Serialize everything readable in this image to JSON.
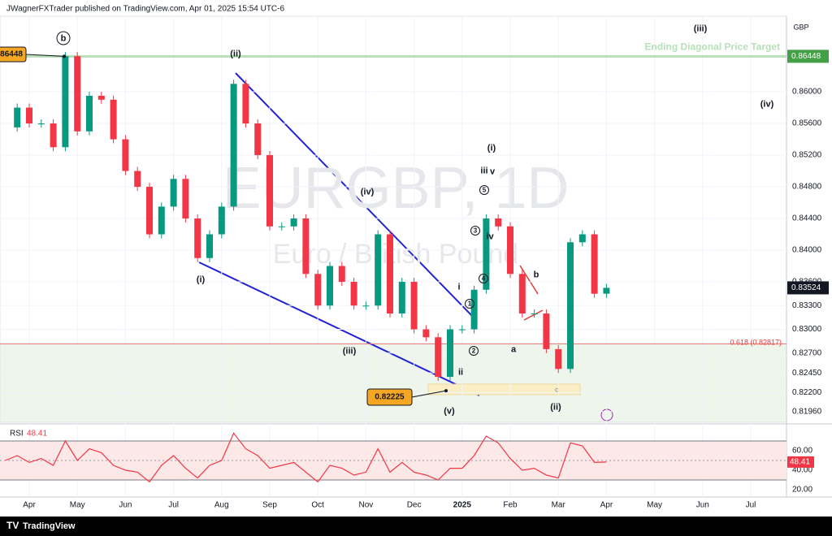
{
  "header": {
    "publisher": "JWagnerFXTrader published on TradingView.com, Apr 01, 2025 15:54 UTC-6"
  },
  "footer": {
    "brand": "TradingView"
  },
  "chart_data": [
    {
      "type": "candlestick",
      "watermark_symbol": "EURGBP, 1D",
      "watermark_name": "Euro / British Pound",
      "currency": "GBP",
      "categories": [
        null,
        null,
        "Apr",
        null,
        null,
        null,
        "May",
        null,
        null,
        null,
        "Jun",
        null,
        null,
        null,
        "Jul",
        null,
        null,
        null,
        "Aug",
        null,
        null,
        null,
        "Sep",
        null,
        null,
        null,
        "Oct",
        null,
        null,
        null,
        "Nov",
        null,
        null,
        null,
        "Dec",
        null,
        null,
        null,
        "2025",
        null,
        null,
        null,
        "Feb",
        null,
        null,
        null,
        "Mar",
        null,
        null,
        null,
        "Apr",
        null,
        null,
        null,
        "May",
        null,
        null,
        null,
        "Jun",
        null,
        null,
        null,
        "Jul"
      ],
      "values": [
        0.8555,
        0.858,
        0.856,
        0.856,
        0.853,
        0.8645,
        0.855,
        0.8595,
        0.859,
        0.854,
        0.85,
        0.848,
        0.842,
        0.8455,
        0.849,
        0.844,
        0.839,
        0.842,
        0.8455,
        0.861,
        0.856,
        0.852,
        0.843,
        0.843,
        0.844,
        0.837,
        0.833,
        0.838,
        0.836,
        0.833,
        0.833,
        0.842,
        0.832,
        0.836,
        0.83,
        0.829,
        0.824,
        0.83,
        0.83,
        0.835,
        0.844,
        0.843,
        0.837,
        0.832,
        0.832,
        0.8275,
        0.825,
        0.841,
        0.842,
        0.8345,
        0.83524,
        null,
        null,
        null,
        null,
        null,
        null,
        null,
        null,
        null,
        null,
        null,
        null
      ],
      "up_color": "#089981",
      "down_color": "#f23645",
      "ylim": [
        0.81826,
        0.86954
      ],
      "yticks": [
        {
          "value": 0.86,
          "label": "0.86000"
        },
        {
          "value": 0.856,
          "label": "0.85600"
        },
        {
          "value": 0.852,
          "label": "0.85200"
        },
        {
          "value": 0.848,
          "label": "0.84800"
        },
        {
          "value": 0.844,
          "label": "0.84400"
        },
        {
          "value": 0.84,
          "label": "0.84000"
        },
        {
          "value": 0.836,
          "label": "0.83600"
        },
        {
          "value": 0.833,
          "label": "0.83300"
        },
        {
          "value": 0.83,
          "label": "0.83000"
        },
        {
          "value": 0.827,
          "label": "0.82700"
        },
        {
          "value": 0.8245,
          "label": "0.82450"
        },
        {
          "value": 0.822,
          "label": "0.82200"
        },
        {
          "value": 0.8196,
          "label": "0.81960"
        }
      ],
      "target_label": "Ending Diagonal Price Target",
      "target_level": 0.86448,
      "fib_label": "0.618 (0.82817)",
      "fib_level": 0.82817,
      "low_level": 0.82225,
      "annotations": [
        "b",
        "(ii)",
        "(i)",
        "(iii)",
        "(iv)",
        "(v)",
        "(i)",
        "(ii)",
        "(iii)",
        "(iv)",
        "iii",
        "v",
        "iv",
        "i",
        "ii",
        "1",
        "2",
        "3",
        "4",
        "5",
        "a",
        "b",
        "c"
      ]
    },
    {
      "type": "line",
      "title": "RSI",
      "values": [
        50,
        55,
        48,
        52,
        45,
        70,
        50,
        62,
        58,
        45,
        40,
        38,
        28,
        45,
        55,
        42,
        32,
        45,
        50,
        78,
        62,
        55,
        42,
        45,
        48,
        38,
        28,
        45,
        42,
        35,
        38,
        62,
        38,
        48,
        38,
        35,
        30,
        42,
        42,
        55,
        75,
        68,
        52,
        40,
        42,
        35,
        32,
        68,
        65,
        48,
        48.41,
        null,
        null,
        null,
        null,
        null,
        null,
        null,
        null,
        null,
        null,
        null,
        null
      ],
      "color": "#f23645",
      "ylim": [
        12.5,
        85
      ],
      "yticks": [
        {
          "value": 60,
          "label": "60.00"
        },
        {
          "value": 40,
          "label": "40.00"
        },
        {
          "value": 20,
          "label": "20.00"
        }
      ],
      "bands": [
        70,
        50,
        30
      ]
    }
  ]
}
